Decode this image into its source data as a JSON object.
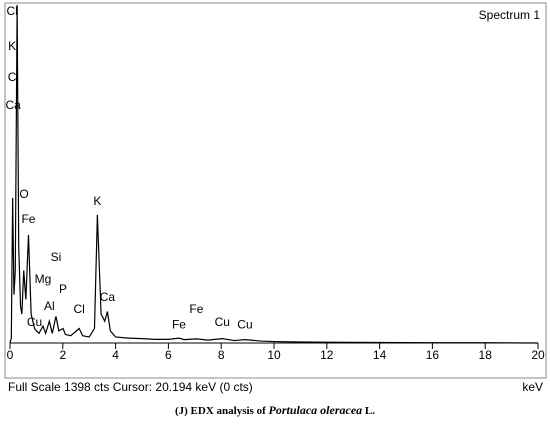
{
  "chart_data": {
    "type": "line",
    "title": "Spectrum 1",
    "x_label": "keV",
    "footer": "Full Scale 1398 cts  Cursor: 20.194 keV (0 cts)",
    "caption": {
      "prefix": "(J) EDX analysis of ",
      "species": "Portulaca oleracea",
      "suffix": " L."
    },
    "color": "#000000",
    "x": [
      0,
      0.05,
      0.1,
      0.15,
      0.2,
      0.27,
      0.33,
      0.4,
      0.45,
      0.52,
      0.6,
      0.7,
      0.8,
      0.93,
      1.0,
      1.1,
      1.25,
      1.35,
      1.49,
      1.6,
      1.74,
      1.85,
      2.01,
      2.1,
      2.3,
      2.62,
      2.75,
      3.0,
      3.2,
      3.31,
      3.45,
      3.59,
      3.69,
      3.8,
      4.0,
      4.5,
      5,
      5.5,
      6,
      6.4,
      6.6,
      7.06,
      7.5,
      8.04,
      8.5,
      8.9,
      9.5,
      10,
      11,
      12,
      14,
      16,
      18,
      20
    ],
    "values": [
      0,
      20,
      600,
      200,
      300,
      1398,
      400,
      150,
      120,
      300,
      180,
      447,
      120,
      60,
      50,
      40,
      70,
      40,
      90,
      40,
      110,
      50,
      60,
      35,
      30,
      60,
      30,
      25,
      60,
      530,
      120,
      90,
      130,
      50,
      25,
      20,
      18,
      15,
      15,
      20,
      14,
      17,
      12,
      18,
      10,
      14,
      8,
      6,
      4,
      3,
      2,
      1,
      1,
      0
    ],
    "xlim": [
      0,
      20
    ],
    "ylim": [
      0,
      1398
    ],
    "xticks": [
      0,
      2,
      4,
      6,
      8,
      10,
      12,
      14,
      16,
      18,
      20
    ],
    "annotations": [
      {
        "text": "Cl",
        "x": 0.08,
        "y": 1369
      },
      {
        "text": "K",
        "x": 0.08,
        "y": 1224
      },
      {
        "text": "C",
        "x": 0.08,
        "y": 1096
      },
      {
        "text": "Ca",
        "x": 0.12,
        "y": 980
      },
      {
        "text": "O",
        "x": 0.53,
        "y": 612
      },
      {
        "text": "Fe",
        "x": 0.7,
        "y": 509
      },
      {
        "text": "Si",
        "x": 1.74,
        "y": 352
      },
      {
        "text": "Mg",
        "x": 1.25,
        "y": 261
      },
      {
        "text": "P",
        "x": 2.01,
        "y": 219
      },
      {
        "text": "Al",
        "x": 1.49,
        "y": 149
      },
      {
        "text": "Cl",
        "x": 2.62,
        "y": 137
      },
      {
        "text": "Cu",
        "x": 0.93,
        "y": 83
      },
      {
        "text": "K",
        "x": 3.31,
        "y": 583
      },
      {
        "text": "Ca",
        "x": 3.69,
        "y": 186
      },
      {
        "text": "Fe",
        "x": 6.4,
        "y": 74
      },
      {
        "text": "Fe",
        "x": 7.06,
        "y": 137
      },
      {
        "text": "Cu",
        "x": 8.04,
        "y": 83
      },
      {
        "text": "Cu",
        "x": 8.9,
        "y": 74
      }
    ]
  }
}
